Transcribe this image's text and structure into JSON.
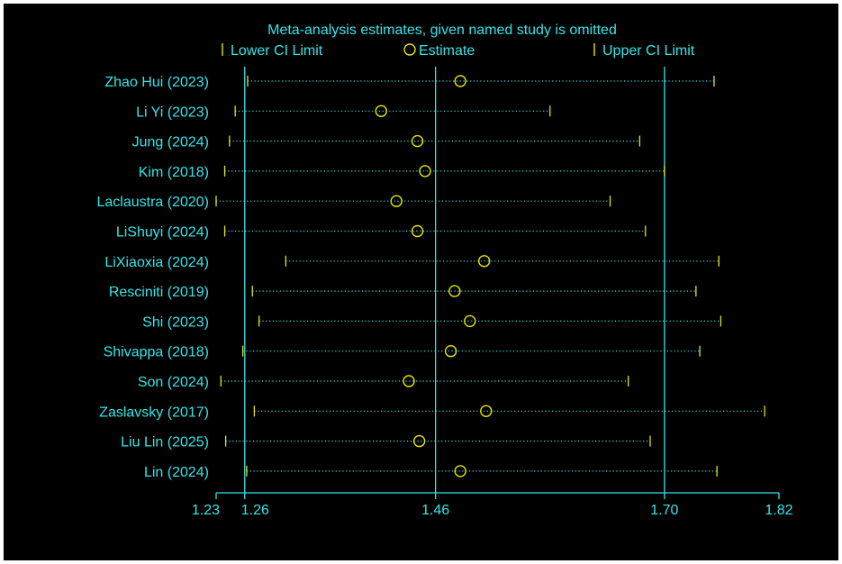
{
  "chart_data": {
    "type": "forest",
    "title": "Meta-analysis estimates, given named study is omitted",
    "legend": {
      "position": "top",
      "entries": [
        {
          "label": "Lower CI Limit",
          "symbol": "tick"
        },
        {
          "label": "Estimate",
          "symbol": "circle"
        },
        {
          "label": "Upper CI Limit",
          "symbol": "tick"
        }
      ]
    },
    "x_ticks": [
      "1.23",
      "1.26",
      "1.46",
      "1.70",
      "1.82"
    ],
    "x_tick_values": [
      1.23,
      1.26,
      1.46,
      1.7,
      1.82
    ],
    "reference_lines": [
      1.26,
      1.46,
      1.7
    ],
    "xlim": [
      1.23,
      1.82
    ],
    "studies": [
      {
        "name": "Zhao Hui (2023)",
        "lower": 1.263,
        "estimate": 1.486,
        "upper": 1.752
      },
      {
        "name": "Li Yi (2023)",
        "lower": 1.25,
        "estimate": 1.403,
        "upper": 1.58
      },
      {
        "name": "Jung (2024)",
        "lower": 1.244,
        "estimate": 1.441,
        "upper": 1.674
      },
      {
        "name": "Kim (2018)",
        "lower": 1.239,
        "estimate": 1.449,
        "upper": 1.7
      },
      {
        "name": "Laclaustra (2020)",
        "lower": 1.23,
        "estimate": 1.419,
        "upper": 1.643
      },
      {
        "name": "LiShuyi (2024)",
        "lower": 1.239,
        "estimate": 1.441,
        "upper": 1.68
      },
      {
        "name": "LiXiaoxia (2024)",
        "lower": 1.303,
        "estimate": 1.511,
        "upper": 1.757
      },
      {
        "name": "Resciniti (2019)",
        "lower": 1.268,
        "estimate": 1.48,
        "upper": 1.733
      },
      {
        "name": "Shi (2023)",
        "lower": 1.275,
        "estimate": 1.496,
        "upper": 1.759
      },
      {
        "name": "Shivappa (2018)",
        "lower": 1.258,
        "estimate": 1.476,
        "upper": 1.737
      },
      {
        "name": "Son (2024)",
        "lower": 1.235,
        "estimate": 1.432,
        "upper": 1.662
      },
      {
        "name": "Zaslavsky (2017)",
        "lower": 1.27,
        "estimate": 1.513,
        "upper": 1.805
      },
      {
        "name": "Liu Lin (2025)",
        "lower": 1.24,
        "estimate": 1.443,
        "upper": 1.685
      },
      {
        "name": "Lin (2024)",
        "lower": 1.262,
        "estimate": 1.486,
        "upper": 1.755
      }
    ],
    "colors": {
      "text": "#33e6ea",
      "axis": "#33e6ea",
      "marker": "#e6e600",
      "dotted": "#33e6ea",
      "background": "#000000"
    }
  }
}
